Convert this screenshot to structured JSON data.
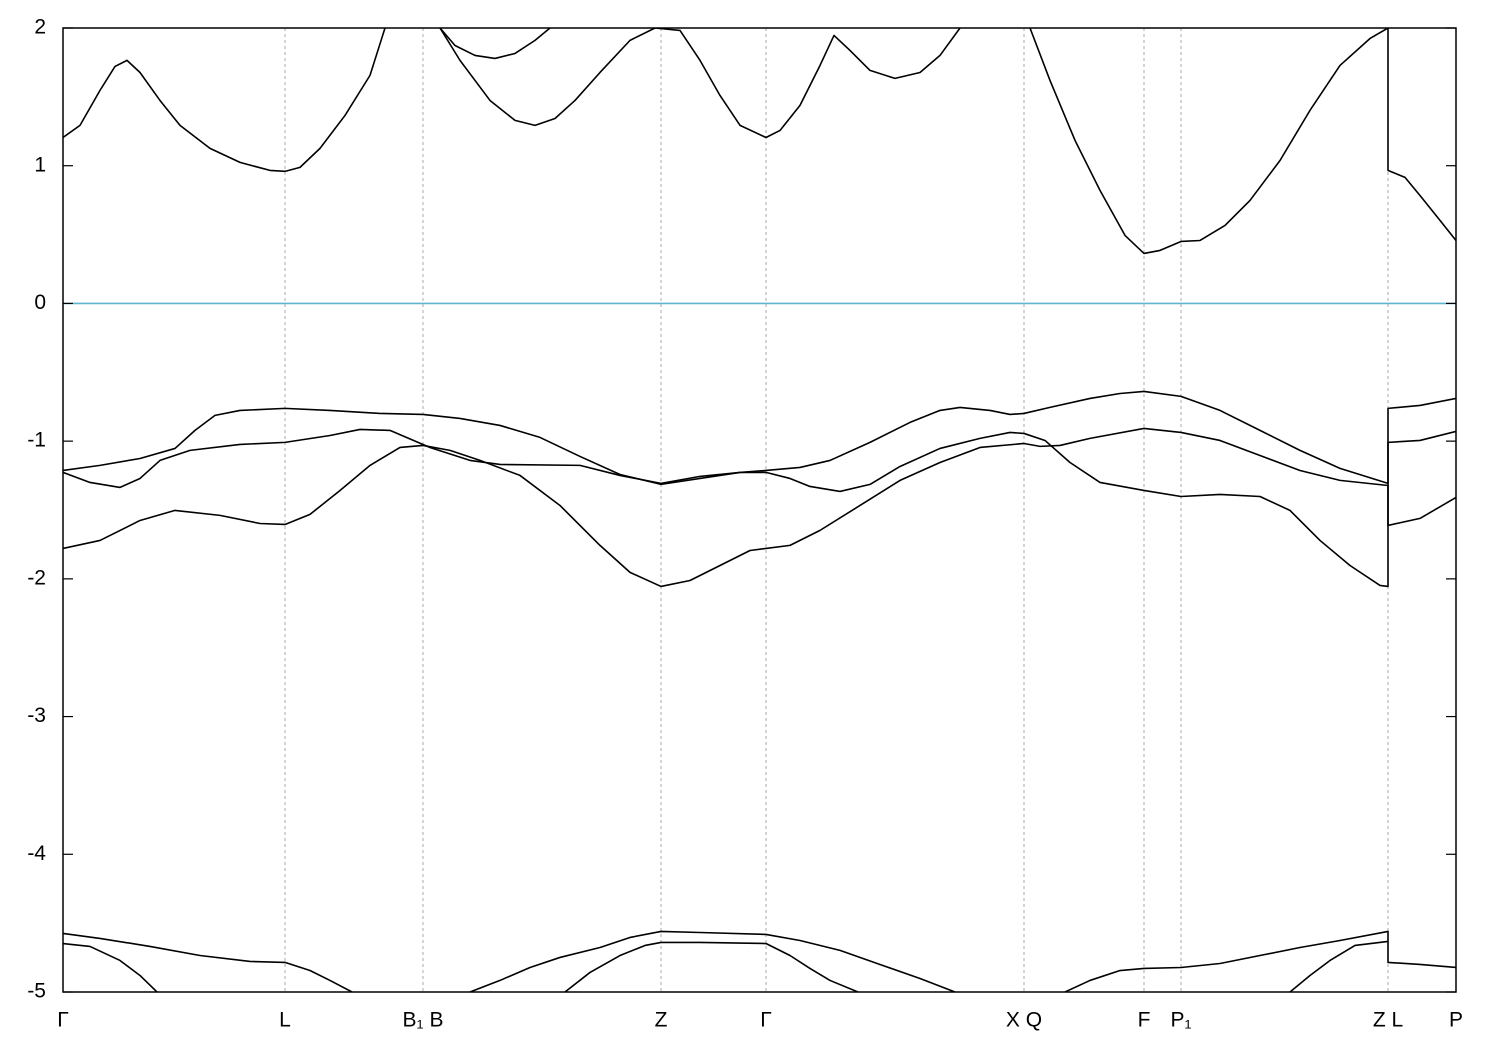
{
  "chart_data": {
    "type": "line",
    "xlim": [
      0,
      1393
    ],
    "ylim": [
      -5,
      2
    ],
    "yticks": [
      -5,
      -4,
      -3,
      -2,
      -1,
      0,
      1,
      2
    ],
    "xticks": [
      {
        "value": 0,
        "label": "Γ"
      },
      {
        "value": 222,
        "label": "L"
      },
      {
        "value": 360,
        "label": "B₁ B"
      },
      {
        "value": 598,
        "label": "Z"
      },
      {
        "value": 703,
        "label": "Γ"
      },
      {
        "value": 961,
        "label": "X Q"
      },
      {
        "value": 1081,
        "label": "F"
      },
      {
        "value": 1118,
        "label": "P₁"
      },
      {
        "value": 1325,
        "label": "Z L"
      },
      {
        "value": 1393,
        "label": "P"
      }
    ],
    "grid": true,
    "hlines": [
      {
        "value": 0,
        "color": "#5fb6cf"
      }
    ],
    "series": [
      {
        "color": "#000000",
        "x": [
          0,
          37,
          77,
          112,
          132,
          152,
          177,
          222,
          267,
          317,
          360,
          397,
          437,
          477,
          517,
          557,
          598,
          637,
          677,
          703,
          737,
          767,
          807,
          847,
          877,
          897,
          927,
          947,
          961,
          987,
          1027,
          1057,
          1081,
          1118,
          1157,
          1197,
          1237,
          1277,
          1325,
          1325,
          1357,
          1393
        ],
        "values": [
          -1.213,
          -1.176,
          -1.126,
          -1.053,
          -0.922,
          -0.813,
          -0.777,
          -0.762,
          -0.777,
          -0.799,
          -0.806,
          -0.835,
          -0.886,
          -0.973,
          -1.111,
          -1.242,
          -1.314,
          -1.271,
          -1.227,
          -1.213,
          -1.191,
          -1.14,
          -1.009,
          -0.864,
          -0.777,
          -0.755,
          -0.777,
          -0.806,
          -0.799,
          -0.755,
          -0.69,
          -0.654,
          -0.639,
          -0.675,
          -0.777,
          -0.922,
          -1.067,
          -1.198,
          -1.307,
          -0.762,
          -0.741,
          -0.69
        ]
      },
      {
        "color": "#000000",
        "x": [
          0,
          27,
          57,
          77,
          97,
          127,
          177,
          222,
          267,
          297,
          327,
          367,
          407,
          437,
          517,
          557,
          598,
          637,
          677,
          703,
          727,
          747,
          777,
          807,
          837,
          877,
          917,
          947,
          961,
          982,
          1007,
          1037,
          1081,
          1118,
          1157,
          1197,
          1227,
          1257,
          1287,
          1317,
          1325,
          1325,
          1357,
          1393
        ],
        "values": [
          -1.227,
          -1.3,
          -1.336,
          -1.271,
          -1.14,
          -1.067,
          -1.024,
          -1.009,
          -0.959,
          -0.915,
          -0.922,
          -1.046,
          -1.14,
          -1.169,
          -1.176,
          -1.249,
          -1.307,
          -1.256,
          -1.227,
          -1.227,
          -1.271,
          -1.329,
          -1.365,
          -1.314,
          -1.184,
          -1.053,
          -0.98,
          -0.937,
          -0.944,
          -0.995,
          -1.155,
          -1.3,
          -1.358,
          -1.402,
          -1.387,
          -1.402,
          -1.503,
          -1.721,
          -1.903,
          -2.048,
          -2.055,
          -1.009,
          -0.995,
          -0.929
        ]
      },
      {
        "color": "#000000",
        "x": [
          0,
          37,
          77,
          112,
          157,
          197,
          222,
          247,
          277,
          307,
          337,
          360,
          387,
          417,
          457,
          497,
          537,
          567,
          598,
          627,
          657,
          687,
          703,
          727,
          757,
          797,
          837,
          877,
          917,
          961,
          977,
          997,
          1027,
          1081,
          1118,
          1157,
          1197,
          1237,
          1277,
          1325,
          1325,
          1357,
          1393
        ],
        "values": [
          -1.779,
          -1.721,
          -1.576,
          -1.503,
          -1.539,
          -1.598,
          -1.605,
          -1.532,
          -1.358,
          -1.176,
          -1.046,
          -1.031,
          -1.067,
          -1.14,
          -1.249,
          -1.467,
          -1.757,
          -1.953,
          -2.055,
          -2.012,
          -1.903,
          -1.794,
          -1.779,
          -1.757,
          -1.648,
          -1.467,
          -1.285,
          -1.155,
          -1.046,
          -1.017,
          -1.038,
          -1.031,
          -0.98,
          -0.908,
          -0.937,
          -0.995,
          -1.104,
          -1.213,
          -1.285,
          -1.322,
          -1.612,
          -1.561,
          -1.409
        ]
      },
      {
        "color": "#000000",
        "x": [
          0,
          17,
          37,
          52,
          64,
          77,
          97,
          117,
          147,
          177,
          207,
          222,
          237,
          257,
          282,
          307,
          322,
          null,
          377,
          397,
          427,
          452,
          472,
          492,
          512,
          537,
          567,
          592,
          617,
          637,
          657,
          677,
          703,
          717,
          737,
          757,
          771,
          787,
          807,
          832,
          857,
          877,
          897,
          null,
          967,
          987,
          1012,
          1037,
          1062,
          1081,
          1097,
          1118,
          1137,
          1162,
          1187,
          1217,
          1247,
          1277,
          1307,
          1325,
          1325,
          1342,
          1357,
          1377,
          1393
        ],
        "values": [
          1.205,
          1.293,
          1.547,
          1.721,
          1.765,
          1.677,
          1.474,
          1.293,
          1.126,
          1.024,
          0.966,
          0.959,
          0.988,
          1.126,
          1.365,
          1.656,
          2.0,
          null,
          2.0,
          1.765,
          1.474,
          1.329,
          1.293,
          1.343,
          1.474,
          1.677,
          1.91,
          2.0,
          1.982,
          1.765,
          1.51,
          1.293,
          1.205,
          1.256,
          1.438,
          1.728,
          1.946,
          1.837,
          1.692,
          1.634,
          1.677,
          1.801,
          2.0,
          null,
          2.0,
          1.619,
          1.184,
          0.821,
          0.494,
          0.363,
          0.385,
          0.45,
          0.457,
          0.566,
          0.748,
          1.038,
          1.402,
          1.728,
          1.924,
          2.0,
          0.966,
          0.915,
          0.784,
          0.603,
          0.457
        ]
      },
      {
        "color": "#000000",
        "x": [
          377,
          392,
          412,
          432,
          452,
          472,
          487
        ],
        "values": [
          2.0,
          1.873,
          1.801,
          1.779,
          1.815,
          1.91,
          2.0
        ]
      },
      {
        "color": "#000000",
        "x": [
          0,
          37,
          87,
          137,
          187,
          222,
          247,
          267,
          289,
          null,
          407,
          437,
          467,
          497,
          537,
          567,
          598,
          637,
          703,
          737,
          777,
          817,
          857,
          892,
          null,
          1002,
          1027,
          1057,
          1081,
          1118,
          1157,
          1197,
          1237,
          1277,
          1325,
          1325,
          1357,
          1393
        ],
        "values": [
          -4.575,
          -4.611,
          -4.669,
          -4.735,
          -4.778,
          -4.785,
          -4.844,
          -4.916,
          -5.0,
          null,
          -5.0,
          -4.916,
          -4.822,
          -4.749,
          -4.677,
          -4.604,
          -4.56,
          -4.568,
          -4.582,
          -4.626,
          -4.698,
          -4.8,
          -4.902,
          -5.0,
          null,
          -5.0,
          -4.916,
          -4.844,
          -4.829,
          -4.822,
          -4.793,
          -4.735,
          -4.677,
          -4.626,
          -4.56,
          -4.785,
          -4.8,
          -4.822
        ]
      },
      {
        "color": "#000000",
        "x": [
          0,
          27,
          57,
          77,
          94,
          null,
          502,
          527,
          557,
          582,
          598,
          637,
          703,
          727,
          747,
          767,
          795,
          null,
          1227,
          1247,
          1267,
          1292,
          1325
        ],
        "values": [
          -4.648,
          -4.669,
          -4.771,
          -4.88,
          -5.0,
          null,
          -5.0,
          -4.858,
          -4.735,
          -4.662,
          -4.64,
          -4.64,
          -4.648,
          -4.735,
          -4.829,
          -4.916,
          -5.0,
          null,
          -5.0,
          -4.88,
          -4.771,
          -4.662,
          -4.633
        ]
      }
    ]
  }
}
